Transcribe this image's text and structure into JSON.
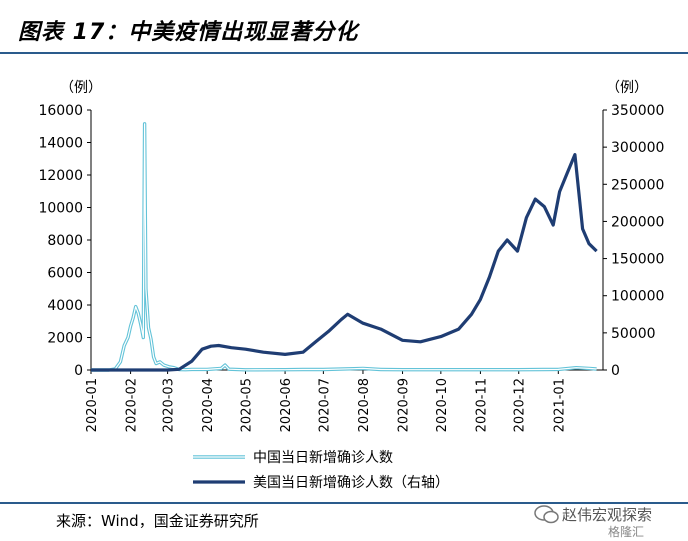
{
  "header": {
    "title": "图表 17：中美疫情出现显著分化"
  },
  "footer": {
    "source": "来源：Wind，国金证券研究所"
  },
  "watermark": {
    "text": "赵伟宏观探索",
    "logo": "格隆汇"
  },
  "colors": {
    "china": "#63c3d8",
    "usa": "#1f3d73",
    "rule": "#2a5b8c"
  },
  "chart_data": {
    "type": "line",
    "left_unit": "（例）",
    "right_unit": "（例）",
    "left_ticks": [
      "0",
      "2000",
      "4000",
      "6000",
      "8000",
      "10000",
      "12000",
      "14000",
      "16000"
    ],
    "right_ticks": [
      "0",
      "50000",
      "100000",
      "150000",
      "200000",
      "250000",
      "300000",
      "350000"
    ],
    "ylim_left": [
      0,
      16000
    ],
    "ylim_right": [
      0,
      350000
    ],
    "x_ticks": [
      "2020-01",
      "2020-02",
      "2020-03",
      "2020-04",
      "2020-05",
      "2020-06",
      "2020-07",
      "2020-08",
      "2020-09",
      "2020-10",
      "2020-11",
      "2020-12",
      "2021-01"
    ],
    "series": [
      {
        "name": "中国当日新增确诊人数",
        "axis": "left",
        "x": [
          "2020-01-01",
          "2020-01-15",
          "2020-01-20",
          "2020-01-24",
          "2020-01-27",
          "2020-01-30",
          "2020-02-01",
          "2020-02-03",
          "2020-02-05",
          "2020-02-07",
          "2020-02-09",
          "2020-02-11",
          "2020-02-12",
          "2020-02-13",
          "2020-02-15",
          "2020-02-17",
          "2020-02-19",
          "2020-02-21",
          "2020-02-24",
          "2020-02-27",
          "2020-03-02",
          "2020-03-06",
          "2020-03-10",
          "2020-03-15",
          "2020-03-20",
          "2020-04-01",
          "2020-04-12",
          "2020-04-15",
          "2020-04-18",
          "2020-05-01",
          "2020-06-01",
          "2020-06-15",
          "2020-07-01",
          "2020-07-25",
          "2020-08-01",
          "2020-08-15",
          "2020-09-01",
          "2020-10-01",
          "2020-11-01",
          "2020-12-01",
          "2020-12-20",
          "2021-01-01",
          "2021-01-15",
          "2021-01-25",
          "2021-01-31"
        ],
        "values": [
          0,
          0,
          70,
          500,
          1500,
          2000,
          2700,
          3200,
          3900,
          3500,
          2800,
          2000,
          15150,
          5000,
          2600,
          1900,
          800,
          400,
          500,
          300,
          200,
          140,
          30,
          20,
          40,
          40,
          100,
          300,
          50,
          10,
          20,
          30,
          30,
          80,
          100,
          30,
          20,
          20,
          20,
          20,
          30,
          40,
          140,
          100,
          60
        ]
      },
      {
        "name": "美国当日新增确诊人数（右轴）",
        "axis": "right",
        "x": [
          "2020-01-01",
          "2020-03-01",
          "2020-03-10",
          "2020-03-20",
          "2020-03-28",
          "2020-04-04",
          "2020-04-10",
          "2020-04-20",
          "2020-05-01",
          "2020-05-15",
          "2020-06-01",
          "2020-06-15",
          "2020-06-25",
          "2020-07-05",
          "2020-07-15",
          "2020-07-20",
          "2020-08-01",
          "2020-08-15",
          "2020-09-01",
          "2020-09-15",
          "2020-10-01",
          "2020-10-15",
          "2020-10-25",
          "2020-11-01",
          "2020-11-08",
          "2020-11-15",
          "2020-11-22",
          "2020-11-30",
          "2020-12-07",
          "2020-12-14",
          "2020-12-21",
          "2020-12-28",
          "2021-01-02",
          "2021-01-08",
          "2021-01-14",
          "2021-01-20",
          "2021-01-25",
          "2021-01-31"
        ],
        "values": [
          0,
          0,
          1000,
          12000,
          28000,
          32000,
          33000,
          30000,
          28000,
          24000,
          21000,
          24000,
          38000,
          52000,
          68000,
          75000,
          63000,
          55000,
          40000,
          38000,
          45000,
          55000,
          75000,
          95000,
          125000,
          160000,
          175000,
          160000,
          205000,
          230000,
          220000,
          195000,
          240000,
          265000,
          290000,
          190000,
          170000,
          160000
        ]
      }
    ]
  }
}
